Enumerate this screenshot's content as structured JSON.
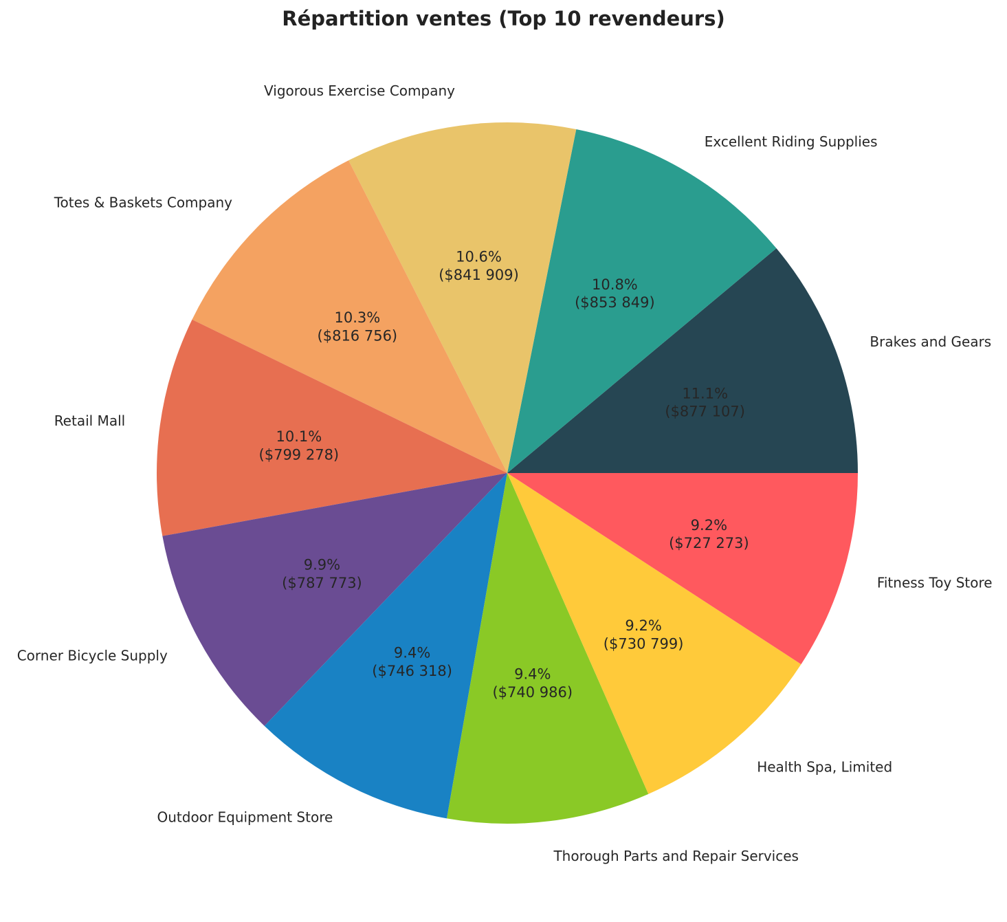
{
  "chart_data": {
    "type": "pie",
    "title": "Répartition ventes (Top 10 revendeurs)",
    "start_angle_deg": 0,
    "direction": "counterclockwise",
    "slices": [
      {
        "label": "Brakes and Gears",
        "value": 877107,
        "pct_text": "11.1%",
        "value_text": "($877 107)",
        "color": "#264653"
      },
      {
        "label": "Excellent Riding Supplies",
        "value": 853849,
        "pct_text": "10.8%",
        "value_text": "($853 849)",
        "color": "#2a9d8f"
      },
      {
        "label": "Vigorous Exercise Company",
        "value": 841909,
        "pct_text": "10.6%",
        "value_text": "($841 909)",
        "color": "#e9c46a"
      },
      {
        "label": "Totes & Baskets Company",
        "value": 816756,
        "pct_text": "10.3%",
        "value_text": "($816 756)",
        "color": "#f4a261"
      },
      {
        "label": "Retail Mall",
        "value": 799278,
        "pct_text": "10.1%",
        "value_text": "($799 278)",
        "color": "#e76f51"
      },
      {
        "label": "Corner Bicycle Supply",
        "value": 787773,
        "pct_text": "9.9%",
        "value_text": "($787 773)",
        "color": "#6a4c93"
      },
      {
        "label": "Outdoor Equipment Store",
        "value": 746318,
        "pct_text": "9.4%",
        "value_text": "($746 318)",
        "color": "#1982c4"
      },
      {
        "label": "Thorough Parts and Repair Services",
        "value": 740986,
        "pct_text": "9.4%",
        "value_text": "($740 986)",
        "color": "#8ac926"
      },
      {
        "label": "Health Spa, Limited",
        "value": 730799,
        "pct_text": "9.2%",
        "value_text": "($730 799)",
        "color": "#ffca3a"
      },
      {
        "label": "Fitness Toy Store",
        "value": 727273,
        "pct_text": "9.2%",
        "value_text": "($727 273)",
        "color": "#ff595e"
      }
    ]
  }
}
